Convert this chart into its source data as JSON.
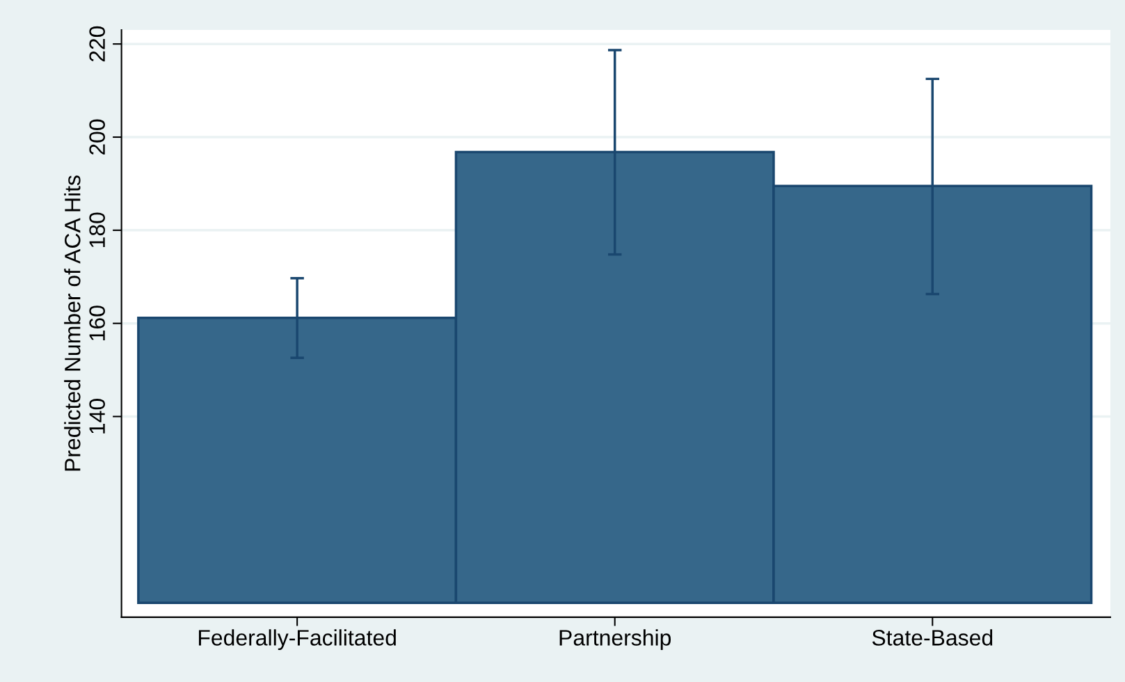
{
  "chart_data": {
    "type": "bar",
    "ylabel": "Predicted Number of ACA Hits",
    "categories": [
      "Federally-Facilitated",
      "Partnership",
      "State-Based"
    ],
    "base": [
      100,
      100,
      100
    ],
    "values": [
      61.2,
      96.8,
      89.5
    ],
    "errors": [
      [
        152.6,
        169.7
      ],
      [
        174.8,
        218.7
      ],
      [
        166.3,
        212.5
      ]
    ],
    "color": "#36678a",
    "ylim": [
      96.9,
      223
    ],
    "yticks": [
      140,
      160,
      180,
      200,
      220
    ],
    "grid": "y"
  }
}
